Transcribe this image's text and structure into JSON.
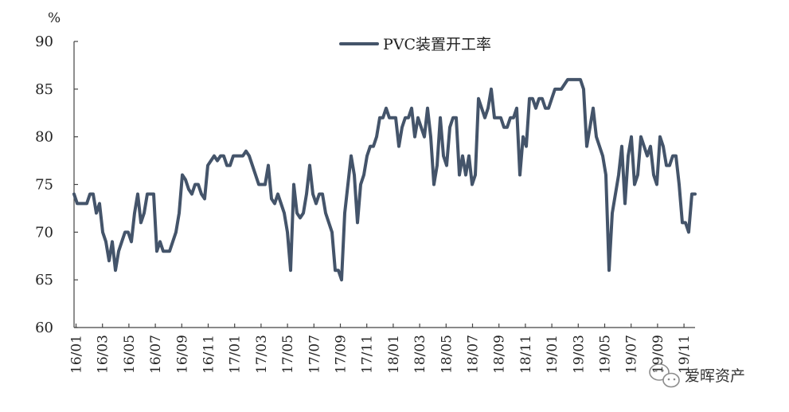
{
  "chart_data": {
    "type": "line",
    "unit": "%",
    "ylim": [
      60,
      90
    ],
    "y_ticks": [
      60,
      65,
      70,
      75,
      80,
      85,
      90
    ],
    "x_ticks": [
      "16/01",
      "16/03",
      "16/05",
      "16/07",
      "16/09",
      "16/11",
      "17/01",
      "17/03",
      "17/05",
      "17/07",
      "17/09",
      "17/11",
      "18/01",
      "18/03",
      "18/05",
      "18/07",
      "18/09",
      "18/11",
      "19/01",
      "19/03",
      "19/05",
      "19/07",
      "19/09",
      "19/11"
    ],
    "grid": false,
    "legend_position": "top-center",
    "series": [
      {
        "name": "PVC装置开工率",
        "color": "#44546a",
        "values": [
          74,
          73,
          73,
          73,
          73,
          74,
          74,
          72,
          73,
          70,
          69,
          67,
          69,
          66,
          68,
          69,
          70,
          70,
          69,
          72,
          74,
          71,
          72,
          74,
          74,
          74,
          68,
          69,
          68,
          68,
          68,
          69,
          70,
          72,
          76,
          75.5,
          74.5,
          74,
          75,
          75,
          74,
          73.5,
          77,
          77.5,
          78,
          77.5,
          78,
          78,
          77,
          77,
          78,
          78,
          78,
          78,
          78.5,
          78,
          77,
          76,
          75,
          75,
          75,
          77,
          73.5,
          73,
          74,
          73,
          72,
          70,
          66,
          75,
          72,
          71.5,
          72,
          74,
          77,
          74,
          73,
          74,
          74,
          72,
          71,
          70,
          66,
          66,
          65,
          72,
          75,
          78,
          76,
          71,
          75,
          76,
          78,
          79,
          79,
          80,
          82,
          82,
          83,
          82,
          82,
          82,
          79,
          81,
          82,
          82,
          83,
          80,
          82,
          81,
          80,
          83,
          80,
          75,
          77,
          82,
          78,
          77,
          81,
          82,
          82,
          76,
          78,
          76,
          78,
          75,
          76,
          84,
          83,
          82,
          83,
          85,
          82,
          82,
          82,
          81,
          81,
          82,
          82,
          83,
          76,
          80,
          79,
          84,
          84,
          83,
          84,
          84,
          83,
          83,
          84,
          85,
          85,
          85,
          85.5,
          86,
          86,
          86,
          86,
          86,
          85,
          79,
          81,
          83,
          80,
          79,
          78,
          76,
          66,
          72,
          74,
          76,
          79,
          73,
          78,
          80,
          75,
          76,
          80,
          79,
          78,
          79,
          76,
          75,
          80,
          79,
          77,
          77,
          78,
          78,
          75,
          71,
          71,
          70,
          74,
          74
        ]
      }
    ]
  },
  "watermark": {
    "text": "爱晖资产",
    "icon": "wechat-icon"
  }
}
